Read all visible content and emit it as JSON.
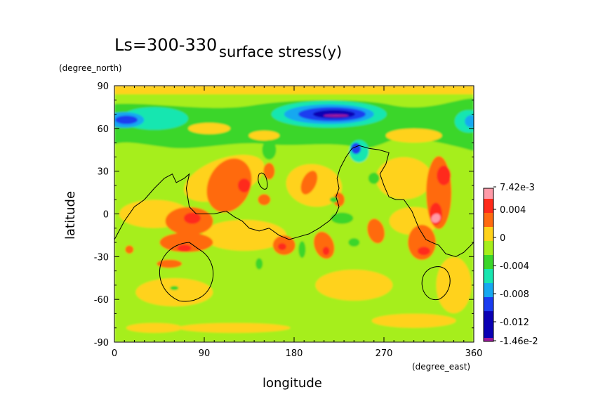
{
  "header": {
    "season": "Ls=300-330",
    "title": "surface stress(y)"
  },
  "chart_data": {
    "type": "heatmap",
    "title": "surface stress(y)",
    "subtitle": "Ls=300-330",
    "xlabel": "longitude",
    "xunit": "(degree_east)",
    "ylabel": "latitude",
    "yunit": "(degree_north)",
    "xlim": [
      0,
      360
    ],
    "ylim": [
      -90,
      90
    ],
    "xticks": [
      "0",
      "90",
      "180",
      "270",
      "360"
    ],
    "yticks": [
      "90",
      "60",
      "30",
      "0",
      "-30",
      "-60",
      "-90"
    ],
    "colorbar": {
      "levels": [
        "7.42e-3",
        "0.004",
        "0",
        "-0.004",
        "-0.008",
        "-0.012",
        "-1.46e-2"
      ],
      "colors": [
        "#ff9aa8",
        "#ff2a1a",
        "#ff6a10",
        "#ffd21a",
        "#a6ee1a",
        "#3ad62a",
        "#18e6b0",
        "#16a8f0",
        "#1a3cf0",
        "#0a00b4",
        "#9c1a9c"
      ],
      "max": 0.00742,
      "min": -0.0146
    },
    "features": {
      "strong_negative": [
        {
          "lon": 220,
          "lat": 70,
          "value": -0.0146
        },
        {
          "lon": 15,
          "lat": 66,
          "value": -0.012
        },
        {
          "lon": 240,
          "lat": 46,
          "value": -0.01
        },
        {
          "lon": 355,
          "lat": 65,
          "value": -0.009
        }
      ],
      "positive_maxima": [
        {
          "lon": 322,
          "lat": -2,
          "value": 0.00742
        },
        {
          "lon": 72,
          "lat": -24,
          "value": 0.006
        },
        {
          "lon": 212,
          "lat": -25,
          "value": 0.005
        },
        {
          "lon": 310,
          "lat": -26,
          "value": 0.005
        },
        {
          "lon": 130,
          "lat": 18,
          "value": 0.005
        },
        {
          "lon": 330,
          "lat": 28,
          "value": 0.005
        }
      ]
    },
    "grid": false,
    "legend": "right colorbar"
  }
}
